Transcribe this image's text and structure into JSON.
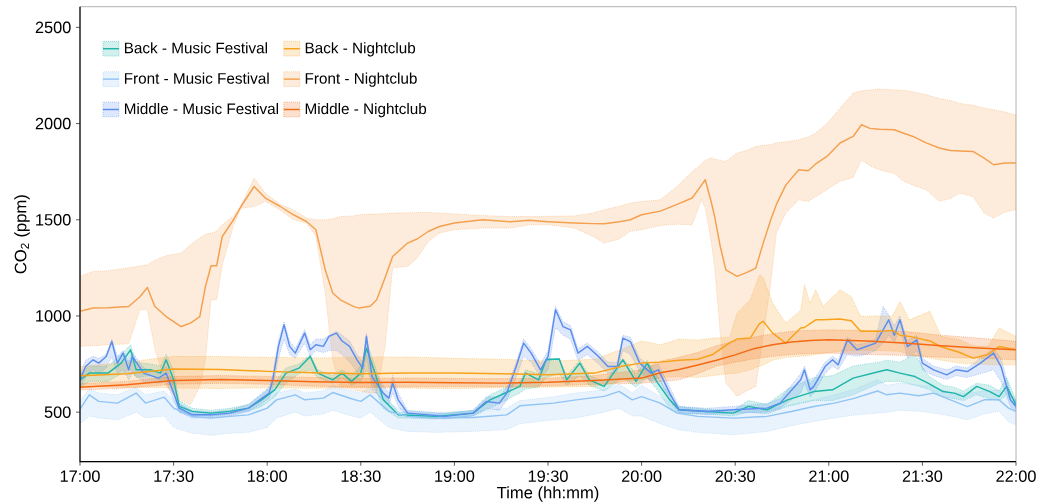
{
  "chart_data": {
    "type": "line",
    "xlabel": "Time (hh:mm)",
    "ylabel": "CO$_{2}$ (ppm)",
    "xlim": [
      17,
      22
    ],
    "ylim": [
      242.5,
      2607.5
    ],
    "xticks": [
      {
        "value": 17,
        "label": "17:00"
      },
      {
        "value": 17.5,
        "label": "17:30"
      },
      {
        "value": 18,
        "label": "18:00"
      },
      {
        "value": 18.5,
        "label": "18:30"
      },
      {
        "value": 19,
        "label": "19:00"
      },
      {
        "value": 19.5,
        "label": "19:30"
      },
      {
        "value": 20,
        "label": "20:00"
      },
      {
        "value": 20.5,
        "label": "20:30"
      },
      {
        "value": 21,
        "label": "21:00"
      },
      {
        "value": 21.5,
        "label": "21:30"
      },
      {
        "value": 22,
        "label": "22:00"
      }
    ],
    "yticks": [
      500,
      1000,
      1500,
      2000,
      2500
    ],
    "legend": "top left",
    "series": [
      {
        "name": "Back - Music Festival",
        "color": "#1fb5a9",
        "x": [
          17.0,
          17.05,
          17.15,
          17.22,
          17.27,
          17.3,
          17.38,
          17.43,
          17.46,
          17.5,
          17.53,
          17.6,
          17.7,
          17.8,
          17.9,
          17.97,
          18.04,
          18.1,
          18.17,
          18.23,
          18.27,
          18.35,
          18.4,
          18.45,
          18.5,
          18.53,
          18.57,
          18.62,
          18.7,
          18.9,
          19.1,
          19.19,
          19.35,
          19.38,
          19.45,
          19.49,
          19.56,
          19.6,
          19.67,
          19.72,
          19.8,
          19.9,
          19.97,
          20.03,
          20.08,
          20.15,
          20.2,
          20.35,
          20.49,
          20.57,
          20.67,
          20.78,
          20.92,
          21.02,
          21.13,
          21.27,
          21.31,
          21.38,
          21.46,
          21.53,
          21.61,
          21.67,
          21.72,
          21.79,
          21.86,
          21.91,
          21.95,
          22.0
        ],
        "values": [
          668,
          703,
          703,
          755,
          824,
          720,
          720,
          703,
          772,
          668,
          530,
          504,
          495,
          504,
          521,
          564,
          616,
          703,
          729,
          789,
          703,
          668,
          703,
          660,
          703,
          833,
          720,
          564,
          486,
          478,
          495,
          564,
          634,
          703,
          668,
          772,
          776,
          668,
          755,
          668,
          634,
          772,
          660,
          755,
          660,
          564,
          512,
          503,
          495,
          530,
          512,
          564,
          607,
          616,
          677,
          711,
          720,
          703,
          685,
          651,
          607,
          599,
          581,
          634,
          607,
          581,
          634,
          538
        ],
        "lower": [
          630,
          660,
          660,
          700,
          720,
          680,
          690,
          660,
          680,
          600,
          500,
          485,
          478,
          490,
          505,
          530,
          580,
          650,
          700,
          720,
          680,
          650,
          680,
          640,
          660,
          720,
          640,
          520,
          470,
          465,
          480,
          520,
          600,
          620,
          630,
          680,
          700,
          640,
          690,
          640,
          610,
          680,
          630,
          680,
          620,
          520,
          495,
          490,
          480,
          500,
          490,
          530,
          560,
          560,
          590,
          650,
          660,
          660,
          640,
          620,
          580,
          570,
          560,
          590,
          570,
          560,
          590,
          520
        ],
        "upper": [
          700,
          740,
          740,
          800,
          850,
          760,
          750,
          740,
          800,
          720,
          560,
          520,
          510,
          520,
          540,
          590,
          650,
          730,
          750,
          800,
          720,
          690,
          720,
          690,
          740,
          860,
          760,
          600,
          500,
          490,
          510,
          590,
          660,
          720,
          700,
          780,
          780,
          690,
          770,
          690,
          660,
          780,
          700,
          770,
          690,
          590,
          530,
          515,
          510,
          560,
          540,
          620,
          680,
          690,
          740,
          760,
          770,
          760,
          800,
          690,
          640,
          630,
          610,
          650,
          640,
          610,
          680,
          560
        ]
      },
      {
        "name": "Front - Music Festival",
        "color": "#90c4f4",
        "x": [
          17.0,
          17.05,
          17.1,
          17.2,
          17.3,
          17.35,
          17.45,
          17.5,
          17.6,
          17.7,
          17.8,
          17.9,
          18.0,
          18.05,
          18.15,
          18.2,
          18.3,
          18.35,
          18.45,
          18.5,
          18.55,
          18.65,
          18.75,
          18.9,
          19.1,
          19.28,
          19.35,
          19.53,
          19.65,
          19.8,
          19.88,
          19.95,
          20.0,
          20.1,
          20.19,
          20.3,
          20.49,
          20.67,
          20.8,
          20.92,
          21.03,
          21.14,
          21.26,
          21.31,
          21.38,
          21.48,
          21.56,
          21.65,
          21.74,
          21.83,
          21.91,
          21.96,
          22.0
        ],
        "values": [
          516,
          590,
          556,
          547,
          599,
          547,
          578,
          521,
          478,
          469,
          478,
          486,
          521,
          564,
          590,
          564,
          573,
          602,
          570,
          556,
          590,
          504,
          478,
          469,
          472,
          486,
          533,
          547,
          564,
          582,
          608,
          564,
          581,
          547,
          495,
          478,
          469,
          478,
          503,
          529,
          547,
          573,
          610,
          590,
          599,
          585,
          599,
          564,
          529,
          564,
          564,
          521,
          504
        ],
        "lower": [
          440,
          480,
          470,
          460,
          500,
          470,
          480,
          420,
          390,
          380,
          390,
          395,
          420,
          470,
          500,
          480,
          490,
          510,
          480,
          470,
          500,
          420,
          400,
          395,
          400,
          410,
          440,
          460,
          470,
          500,
          520,
          480,
          480,
          440,
          410,
          395,
          382,
          400,
          430,
          452,
          470,
          485,
          495,
          500,
          510,
          505,
          495,
          480,
          460,
          490,
          505,
          450,
          434
        ],
        "upper": [
          560,
          620,
          600,
          590,
          630,
          590,
          610,
          560,
          510,
          500,
          506,
          510,
          550,
          600,
          620,
          600,
          610,
          640,
          610,
          600,
          630,
          540,
          505,
          500,
          505,
          520,
          560,
          580,
          600,
          616,
          645,
          600,
          640,
          580,
          530,
          512,
          503,
          510,
          540,
          564,
          590,
          620,
          668,
          640,
          651,
          640,
          634,
          600,
          599,
          610,
          616,
          570,
          547
        ]
      },
      {
        "name": "Middle - Music Festival",
        "color": "#5b8def",
        "x": [
          17.0,
          17.03,
          17.07,
          17.1,
          17.14,
          17.17,
          17.2,
          17.23,
          17.26,
          17.28,
          17.34,
          17.42,
          17.46,
          17.5,
          17.53,
          17.6,
          17.7,
          17.8,
          17.9,
          17.96,
          18.01,
          18.03,
          18.06,
          18.09,
          18.12,
          18.15,
          18.2,
          18.23,
          18.26,
          18.3,
          18.33,
          18.37,
          18.4,
          18.44,
          18.48,
          18.51,
          18.53,
          18.56,
          18.62,
          18.65,
          18.67,
          18.7,
          18.75,
          18.95,
          19.1,
          19.17,
          19.24,
          19.28,
          19.33,
          19.37,
          19.41,
          19.46,
          19.5,
          19.54,
          19.58,
          19.62,
          19.66,
          19.71,
          19.77,
          19.82,
          19.87,
          19.9,
          19.94,
          19.99,
          20.05,
          20.09,
          20.15,
          20.2,
          20.35,
          20.49,
          20.67,
          20.74,
          20.85,
          20.87,
          20.9,
          20.92,
          20.98,
          21.02,
          21.05,
          21.1,
          21.15,
          21.2,
          21.25,
          21.29,
          21.32,
          21.35,
          21.38,
          21.42,
          21.47,
          21.5,
          21.56,
          21.63,
          21.68,
          21.74,
          21.81,
          21.88,
          21.92,
          21.97,
          22.0
        ],
        "values": [
          668,
          737,
          772,
          755,
          789,
          867,
          755,
          807,
          720,
          789,
          703,
          677,
          703,
          599,
          521,
          486,
          486,
          495,
          521,
          564,
          599,
          668,
          842,
          954,
          842,
          807,
          911,
          824,
          850,
          842,
          894,
          911,
          870,
          842,
          772,
          729,
          894,
          685,
          599,
          573,
          651,
          564,
          495,
          478,
          495,
          555,
          547,
          599,
          737,
          859,
          807,
          720,
          789,
          1032,
          945,
          928,
          807,
          842,
          789,
          737,
          737,
          885,
          867,
          755,
          703,
          720,
          599,
          512,
          503,
          512,
          521,
          547,
          668,
          720,
          616,
          634,
          737,
          772,
          746,
          876,
          824,
          841,
          859,
          928,
          980,
          900,
          980,
          841,
          876,
          755,
          720,
          694,
          720,
          711,
          755,
          807,
          737,
          564,
          529
        ],
        "lower": [
          630,
          680,
          720,
          700,
          730,
          790,
          700,
          720,
          670,
          700,
          660,
          650,
          660,
          560,
          500,
          470,
          470,
          480,
          505,
          540,
          570,
          620,
          780,
          880,
          800,
          780,
          860,
          790,
          820,
          810,
          820,
          820,
          800,
          760,
          710,
          680,
          800,
          620,
          560,
          540,
          600,
          530,
          480,
          465,
          480,
          520,
          510,
          560,
          680,
          790,
          760,
          680,
          720,
          940,
          900,
          880,
          770,
          800,
          750,
          700,
          710,
          820,
          800,
          710,
          660,
          680,
          560,
          495,
          488,
          495,
          500,
          520,
          600,
          650,
          580,
          600,
          700,
          740,
          720,
          800,
          790,
          800,
          820,
          860,
          900,
          860,
          940,
          780,
          820,
          720,
          690,
          670,
          690,
          680,
          700,
          720,
          660,
          530,
          500
        ],
        "upper": [
          700,
          770,
          790,
          780,
          800,
          880,
          790,
          820,
          760,
          810,
          730,
          700,
          740,
          640,
          545,
          500,
          500,
          510,
          540,
          590,
          630,
          700,
          870,
          970,
          870,
          830,
          930,
          850,
          880,
          880,
          900,
          920,
          900,
          870,
          800,
          760,
          910,
          730,
          640,
          600,
          690,
          600,
          510,
          492,
          510,
          580,
          580,
          630,
          760,
          880,
          830,
          750,
          820,
          1050,
          970,
          950,
          830,
          860,
          810,
          760,
          760,
          900,
          890,
          780,
          740,
          750,
          630,
          530,
          520,
          530,
          545,
          570,
          700,
          740,
          650,
          670,
          760,
          790,
          770,
          890,
          850,
          860,
          880,
          1050,
          1005,
          950,
          1000,
          870,
          900,
          780,
          740,
          720,
          740,
          730,
          780,
          830,
          780,
          600,
          560
        ]
      },
      {
        "name": "Back - Nightclub",
        "color": "#f7a21b",
        "x": [
          17.0,
          17.25,
          17.5,
          17.75,
          18.0,
          18.25,
          18.5,
          18.75,
          19.0,
          19.25,
          19.5,
          19.75,
          19.9,
          20.0,
          20.1,
          20.2,
          20.3,
          20.38,
          20.47,
          20.51,
          20.58,
          20.63,
          20.65,
          20.7,
          20.77,
          20.85,
          20.87,
          20.9,
          20.93,
          20.97,
          21.06,
          21.12,
          21.17,
          21.27,
          21.34,
          21.38,
          21.43,
          21.54,
          21.6,
          21.7,
          21.77,
          21.85,
          21.91,
          22.0
        ],
        "values": [
          689,
          700,
          724,
          722,
          712,
          705,
          700,
          703,
          703,
          700,
          694,
          703,
          740,
          755,
          760,
          770,
          775,
          800,
          860,
          880,
          885,
          960,
          972,
          911,
          859,
          937,
          940,
          960,
          980,
          980,
          984,
          975,
          920,
          920,
          925,
          900,
          894,
          870,
          840,
          810,
          781,
          800,
          841,
          824
        ],
        "lower": [
          634,
          630,
          626,
          623,
          627,
          624,
          628,
          625,
          622,
          628,
          630,
          634,
          660,
          668,
          680,
          685,
          680,
          690,
          700,
          703,
          720,
          738,
          745,
          770,
          785,
          790,
          792,
          795,
          800,
          805,
          816,
          819,
          822,
          820,
          818,
          815,
          800,
          781,
          770,
          755,
          750,
          748,
          746,
          746
        ],
        "upper": [
          737,
          760,
          790,
          789,
          785,
          782,
          786,
          787,
          780,
          775,
          765,
          775,
          830,
          870,
          850,
          880,
          875,
          885,
          890,
          1015,
          1084,
          1214,
          1200,
          1067,
          963,
          1030,
          1162,
          1067,
          1136,
          1050,
          1136,
          1100,
          998,
          1000,
          1000,
          1076,
          980,
          1024,
          894,
          876,
          845,
          841,
          937,
          894
        ]
      },
      {
        "name": "Front - Nightclub",
        "color": "#f5a04e",
        "x": [
          17.0,
          17.07,
          17.15,
          17.26,
          17.32,
          17.36,
          17.4,
          17.46,
          17.54,
          17.59,
          17.64,
          17.67,
          17.7,
          17.73,
          17.76,
          17.82,
          17.86,
          17.93,
          17.99,
          18.07,
          18.14,
          18.21,
          18.26,
          18.31,
          18.35,
          18.39,
          18.46,
          18.49,
          18.55,
          18.585,
          18.63,
          18.67,
          18.75,
          18.8,
          18.86,
          18.92,
          19.0,
          19.15,
          19.3,
          19.4,
          19.5,
          19.64,
          19.74,
          19.8,
          19.88,
          19.94,
          20.0,
          20.1,
          20.19,
          20.27,
          20.32,
          20.34,
          20.37,
          20.39,
          20.42,
          20.45,
          20.51,
          20.56,
          20.61,
          20.65,
          20.69,
          20.72,
          20.77,
          20.84,
          20.89,
          20.93,
          20.99,
          21.06,
          21.13,
          21.175,
          21.22,
          21.27,
          21.35,
          21.4,
          21.45,
          21.52,
          21.59,
          21.65,
          21.7,
          21.77,
          21.83,
          21.88,
          21.94,
          22.0
        ],
        "values": [
          1024,
          1041,
          1043,
          1049,
          1100,
          1148,
          1049,
          997,
          945,
          963,
          997,
          1153,
          1261,
          1261,
          1413,
          1500,
          1569,
          1673,
          1613,
          1569,
          1526,
          1491,
          1448,
          1240,
          1119,
          1084,
          1050,
          1041,
          1050,
          1084,
          1200,
          1309,
          1379,
          1400,
          1439,
          1465,
          1483,
          1500,
          1490,
          1497,
          1490,
          1483,
          1480,
          1479,
          1490,
          1500,
          1526,
          1545,
          1580,
          1613,
          1680,
          1708,
          1600,
          1518,
          1362,
          1240,
          1206,
          1225,
          1249,
          1380,
          1500,
          1580,
          1680,
          1760,
          1755,
          1790,
          1829,
          1899,
          1933,
          1994,
          1975,
          1970,
          1968,
          1950,
          1933,
          1900,
          1873,
          1860,
          1858,
          1855,
          1820,
          1786,
          1795,
          1795
        ],
        "lower": [
          842,
          845,
          850,
          855,
          1032,
          1032,
          830,
          634,
          560,
          538,
          634,
          772,
          1084,
          1084,
          1266,
          1470,
          1560,
          1569,
          1595,
          1550,
          1500,
          1483,
          1413,
          1119,
          772,
          634,
          616,
          610,
          600,
          600,
          842,
          1250,
          1257,
          1300,
          1387,
          1431,
          1448,
          1457,
          1457,
          1474,
          1474,
          1457,
          1413,
          1379,
          1400,
          1440,
          1448,
          1470,
          1477,
          1474,
          1604,
          1560,
          1400,
          1258,
          911,
          651,
          582,
          610,
          634,
          900,
          1171,
          1431,
          1535,
          1604,
          1595,
          1620,
          1656,
          1700,
          1720,
          1812,
          1780,
          1760,
          1740,
          1700,
          1680,
          1656,
          1596,
          1610,
          1639,
          1620,
          1535,
          1509,
          1540,
          1552
        ],
        "upper": [
          1206,
          1231,
          1235,
          1250,
          1260,
          1266,
          1290,
          1313,
          1327,
          1370,
          1405,
          1425,
          1431,
          1440,
          1474,
          1520,
          1575,
          1717,
          1639,
          1580,
          1552,
          1509,
          1500,
          1500,
          1505,
          1517,
          1520,
          1526,
          1530,
          1530,
          1532,
          1535,
          1536,
          1538,
          1538,
          1535,
          1530,
          1522,
          1517,
          1517,
          1518,
          1520,
          1535,
          1552,
          1570,
          1587,
          1595,
          1604,
          1673,
          1751,
          1790,
          1810,
          1821,
          1815,
          1810,
          1803,
          1847,
          1860,
          1881,
          1887,
          1890,
          1900,
          1905,
          1916,
          1930,
          1951,
          2000,
          2080,
          2159,
          2170,
          2175,
          2180,
          2175,
          2173,
          2165,
          2150,
          2130,
          2120,
          2105,
          2095,
          2080,
          2072,
          2060,
          2046
        ]
      },
      {
        "name": "Middle - Nightclub",
        "color": "#f36a13",
        "x": [
          17.0,
          17.25,
          17.5,
          17.75,
          18.0,
          18.25,
          18.5,
          18.75,
          19.0,
          19.25,
          19.5,
          19.75,
          20.0,
          20.1,
          20.2,
          20.3,
          20.4,
          20.5,
          20.6,
          20.7,
          20.8,
          20.9,
          21.0,
          21.2,
          21.4,
          21.6,
          21.8,
          22.0
        ],
        "values": [
          630,
          642,
          665,
          670,
          665,
          658,
          654,
          656,
          653,
          651,
          655,
          665,
          677,
          705,
          722,
          745,
          770,
          798,
          830,
          850,
          865,
          872,
          876,
          870,
          860,
          845,
          833,
          824
        ],
        "lower": [
          615,
          625,
          645,
          650,
          645,
          635,
          630,
          631,
          633,
          632,
          636,
          645,
          650,
          658,
          668,
          700,
          740,
          760,
          777,
          790,
          800,
          805,
          807,
          800,
          795,
          785,
          780,
          772
        ],
        "upper": [
          648,
          660,
          685,
          690,
          686,
          680,
          675,
          677,
          675,
          674,
          676,
          690,
          720,
          765,
          785,
          810,
          845,
          870,
          890,
          907,
          920,
          926,
          928,
          925,
          920,
          900,
          885,
          868
        ]
      }
    ]
  }
}
